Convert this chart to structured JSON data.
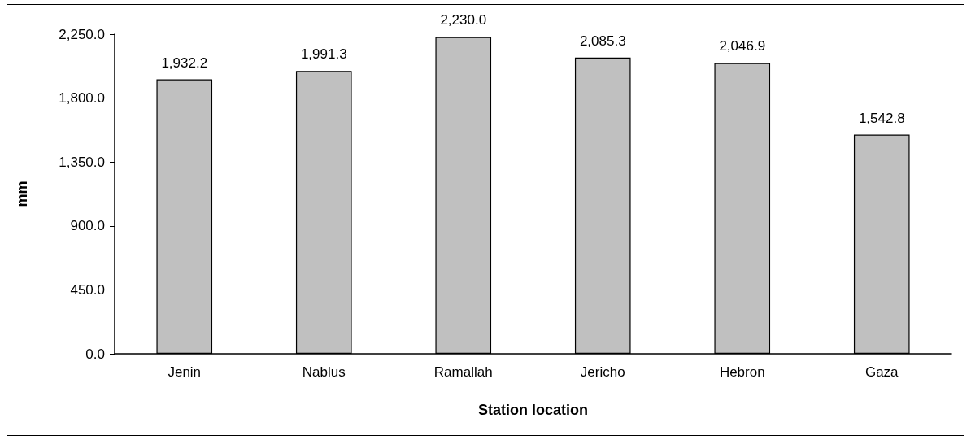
{
  "chart_data": {
    "type": "bar",
    "xlabel": "Station location",
    "ylabel": "mm",
    "categories": [
      "Jenin",
      "Nablus",
      "Ramallah",
      "Jericho",
      "Hebron",
      "Gaza"
    ],
    "values": [
      1932.2,
      1991.3,
      2230.0,
      2085.3,
      2046.9,
      1542.8
    ],
    "value_labels": [
      "1,932.2",
      "1,991.3",
      "2,230.0",
      "2,085.3",
      "2,046.9",
      "1,542.8"
    ],
    "color": "#c0c0c0",
    "ylim": [
      0,
      2250
    ],
    "yticks": [
      {
        "value": 0,
        "label": "0.0"
      },
      {
        "value": 450,
        "label": "450.0"
      },
      {
        "value": 900,
        "label": "900.0"
      },
      {
        "value": 1350,
        "label": "1,350.0"
      },
      {
        "value": 1800,
        "label": "1,800.0"
      },
      {
        "value": 2250,
        "label": "2,250.0"
      }
    ],
    "grid": false
  }
}
